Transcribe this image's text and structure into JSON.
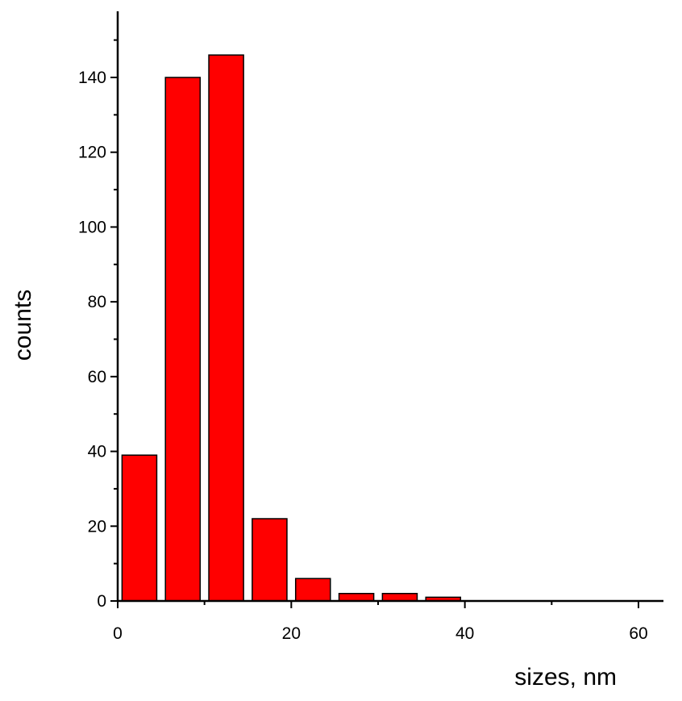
{
  "chart_data": {
    "type": "bar",
    "title": "",
    "xlabel": "sizes, nm",
    "ylabel": "counts",
    "bar_color": "#ff0000",
    "bin_width": 5,
    "bar_width": 4,
    "x": [
      2.5,
      7.5,
      12.5,
      17.5,
      22.5,
      27.5,
      32.5,
      37.5
    ],
    "values": [
      39,
      140,
      146,
      22,
      6,
      2,
      2,
      1
    ],
    "xlim": [
      0,
      63
    ],
    "ylim": [
      0,
      157
    ],
    "xticks": [
      0,
      20,
      40,
      60
    ],
    "xtick_labels": [
      "0",
      "20",
      "40",
      "60"
    ],
    "yticks": [
      0,
      20,
      40,
      60,
      80,
      100,
      120,
      140
    ],
    "ytick_labels": [
      "0",
      "20",
      "40",
      "60",
      "80",
      "100",
      "120",
      "140"
    ],
    "grid": false,
    "legend": "none"
  }
}
